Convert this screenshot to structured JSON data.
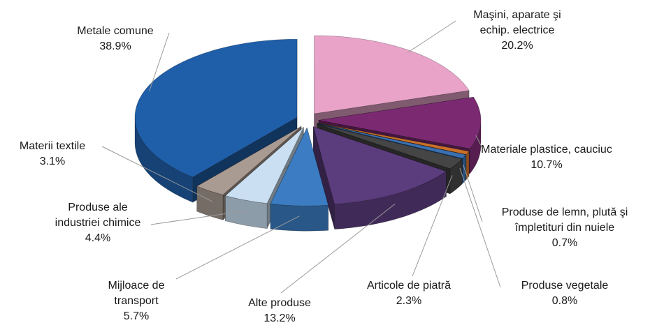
{
  "chart_data": {
    "type": "pie3d",
    "categories": [
      "Metale comune",
      "Maşini, aparate şi\nechip. electrice",
      "Materiale plastice, cauciuc",
      "Produse de lemn, plută şi\nîmpletituri din nuiele",
      "Produse vegetale",
      "Articole de piatră",
      "Alte produse",
      "Mijloace de\ntransport",
      "Produse ale\nindustriei chimice",
      "Materii textile"
    ],
    "values": [
      38.9,
      20.2,
      10.7,
      0.7,
      0.8,
      2.3,
      13.2,
      5.7,
      4.4,
      3.1
    ],
    "value_labels": [
      "38.9%",
      "20.2%",
      "10.7%",
      "0.7%",
      "0.8%",
      "2.3%",
      "13.2%",
      "5.7%",
      "4.4%",
      "3.1%"
    ],
    "colors": [
      "#1f5ea8",
      "#e9a3c9",
      "#7b2a72",
      "#c8702a",
      "#3a70b0",
      "#454545",
      "#5b3c7d",
      "#3b7cc2",
      "#cadff2",
      "#a99a92"
    ]
  }
}
